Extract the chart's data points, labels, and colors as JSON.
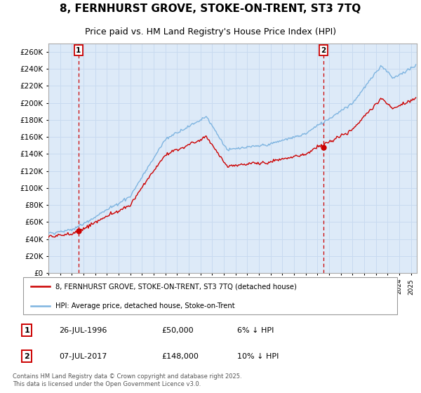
{
  "title": "8, FERNHURST GROVE, STOKE-ON-TRENT, ST3 7TQ",
  "subtitle": "Price paid vs. HM Land Registry's House Price Index (HPI)",
  "ylim": [
    0,
    270000
  ],
  "yticks": [
    0,
    20000,
    40000,
    60000,
    80000,
    100000,
    120000,
    140000,
    160000,
    180000,
    200000,
    220000,
    240000,
    260000
  ],
  "sale1_year": 1996.57,
  "sale1_price": 50000,
  "sale1_label": "1",
  "sale2_year": 2017.52,
  "sale2_price": 148000,
  "sale2_label": "2",
  "legend_line1": "8, FERNHURST GROVE, STOKE-ON-TRENT, ST3 7TQ (detached house)",
  "legend_line2": "HPI: Average price, detached house, Stoke-on-Trent",
  "annotation1_num": "1",
  "annotation1_date": "26-JUL-1996",
  "annotation1_price": "£50,000",
  "annotation1_hpi": "6% ↓ HPI",
  "annotation2_num": "2",
  "annotation2_date": "07-JUL-2017",
  "annotation2_price": "£148,000",
  "annotation2_hpi": "10% ↓ HPI",
  "copyright": "Contains HM Land Registry data © Crown copyright and database right 2025.\nThis data is licensed under the Open Government Licence v3.0.",
  "line_color_hpi": "#7eb4e0",
  "line_color_sale": "#cc0000",
  "dot_color_sale": "#cc0000",
  "grid_color": "#c8daf0",
  "dashed_color": "#cc0000",
  "bg_color": "#ddeaf8",
  "title_fontsize": 11,
  "subtitle_fontsize": 9
}
